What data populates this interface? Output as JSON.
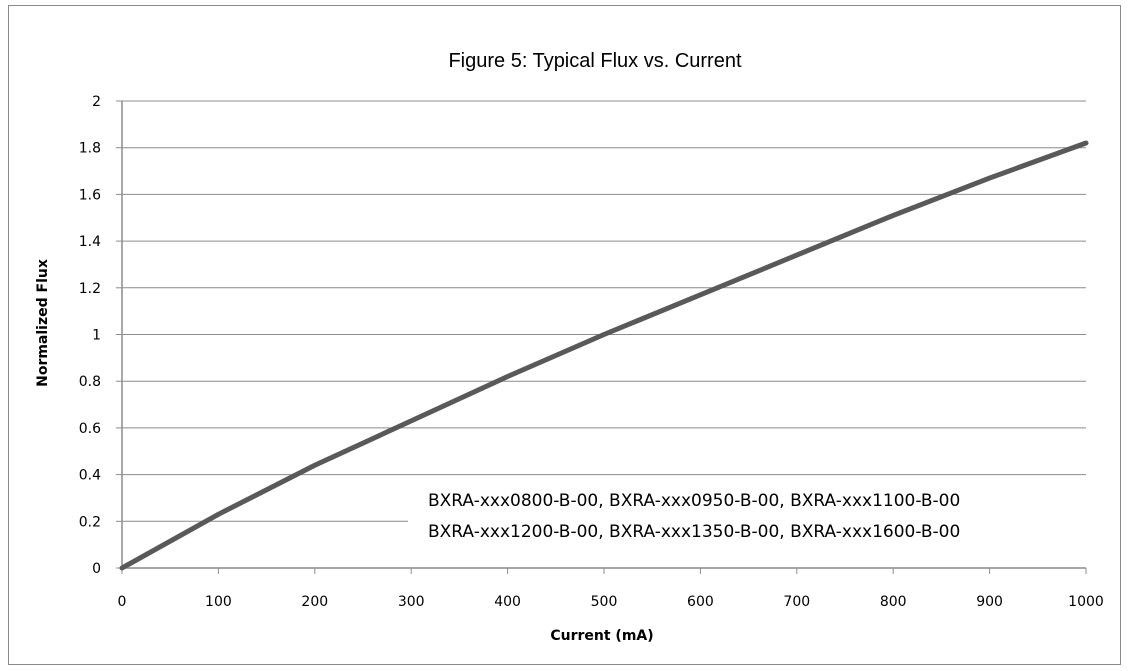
{
  "chart_data": {
    "type": "line",
    "title": "Figure 5:  Typical Flux vs. Current",
    "xlabel": "Current (mA)",
    "ylabel": "Normalized Flux",
    "xlim": [
      0,
      1000
    ],
    "ylim": [
      0,
      2
    ],
    "x_ticks": [
      "0",
      "100",
      "200",
      "300",
      "400",
      "500",
      "600",
      "700",
      "800",
      "900",
      "1000"
    ],
    "y_ticks": [
      "0",
      "0.2",
      "0.4",
      "0.6",
      "0.8",
      "1",
      "1.2",
      "1.4",
      "1.6",
      "1.8",
      "2"
    ],
    "grid": "horizontal",
    "series": [
      {
        "color": "#595959",
        "x": [
          0,
          100,
          200,
          300,
          400,
          500,
          600,
          700,
          800,
          900,
          1000
        ],
        "y": [
          0,
          0.23,
          0.44,
          0.63,
          0.82,
          1.0,
          1.17,
          1.34,
          1.51,
          1.67,
          1.82
        ]
      }
    ],
    "annotations": [
      "BXRA-xxx0800-B-00, BXRA-xxx0950-B-00, BXRA-xxx1100-B-00",
      "BXRA-xxx1200-B-00, BXRA-xxx1350-B-00, BXRA-xxx1600-B-00"
    ]
  }
}
